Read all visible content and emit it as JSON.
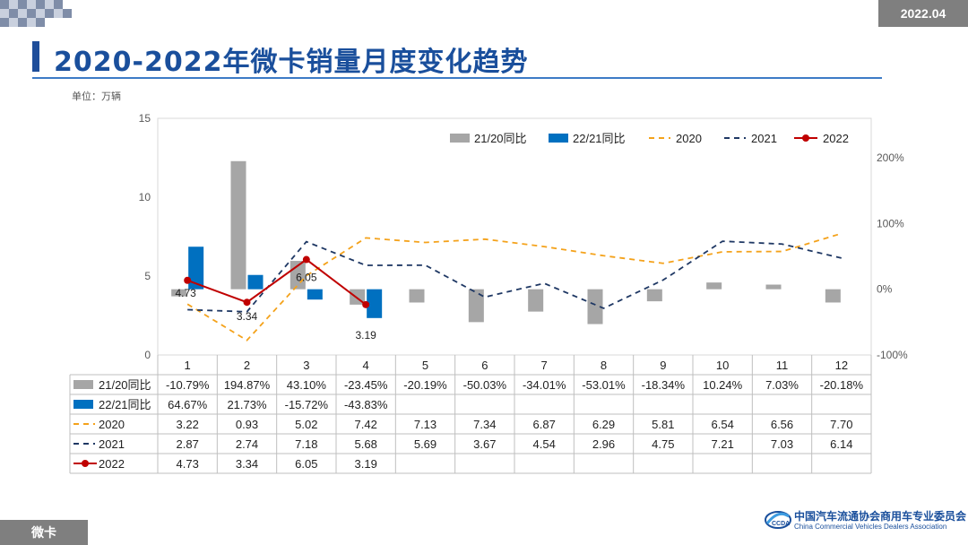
{
  "header": {
    "date": "2022.04",
    "title": "2020-2022年微卡销量月度变化趋势"
  },
  "unit_label": "单位：万辆",
  "footer": {
    "tag": "微卡",
    "org_cn": "中国汽车流通协会商用车专业委员会",
    "org_en": "China Commercial Vehicles Dealers Association"
  },
  "colors": {
    "bar_2120": "#a6a6a6",
    "bar_2221": "#0070c0",
    "line_2020": "#f4a21b",
    "line_2021": "#1f3864",
    "line_2022": "#c00000",
    "title": "#1a4f9c"
  },
  "chart_data": {
    "type": "bar+line",
    "categories": [
      "1",
      "2",
      "3",
      "4",
      "5",
      "6",
      "7",
      "8",
      "9",
      "10",
      "11",
      "12"
    ],
    "y_left_ticks": [
      "0",
      "5",
      "10",
      "15"
    ],
    "y_left_range": [
      0,
      15
    ],
    "y_right_ticks": [
      "-100%",
      "0%",
      "100%",
      "200%"
    ],
    "y_right_range": [
      -1.0,
      2.6
    ],
    "legend_position": "top-right",
    "bar_series": [
      {
        "name": "21/20同比",
        "values": [
          -10.79,
          194.87,
          43.1,
          -23.45,
          -20.19,
          -50.03,
          -34.01,
          -53.01,
          -18.34,
          10.24,
          7.03,
          -20.18
        ],
        "labels": [
          "-10.79%",
          "194.87%",
          "43.10%",
          "-23.45%",
          "-20.19%",
          "-50.03%",
          "-34.01%",
          "-53.01%",
          "-18.34%",
          "10.24%",
          "7.03%",
          "-20.18%"
        ]
      },
      {
        "name": "22/21同比",
        "values": [
          64.67,
          21.73,
          -15.72,
          -43.83
        ],
        "labels": [
          "64.67%",
          "21.73%",
          "-15.72%",
          "-43.83%"
        ]
      }
    ],
    "line_series": [
      {
        "name": "2020",
        "values": [
          3.22,
          0.93,
          5.02,
          7.42,
          7.13,
          7.34,
          6.87,
          6.29,
          5.81,
          6.54,
          6.56,
          7.7
        ],
        "labels": [
          "3.22",
          "0.93",
          "5.02",
          "7.42",
          "7.13",
          "7.34",
          "6.87",
          "6.29",
          "5.81",
          "6.54",
          "6.56",
          "7.70"
        ]
      },
      {
        "name": "2021",
        "values": [
          2.87,
          2.74,
          7.18,
          5.68,
          5.69,
          3.67,
          4.54,
          2.96,
          4.75,
          7.21,
          7.03,
          6.14
        ],
        "labels": [
          "2.87",
          "2.74",
          "7.18",
          "5.68",
          "5.69",
          "3.67",
          "4.54",
          "2.96",
          "4.75",
          "7.21",
          "7.03",
          "6.14"
        ]
      },
      {
        "name": "2022",
        "values": [
          4.73,
          3.34,
          6.05,
          3.19
        ],
        "labels": [
          "4.73",
          "3.34",
          "6.05",
          "3.19"
        ]
      }
    ]
  }
}
